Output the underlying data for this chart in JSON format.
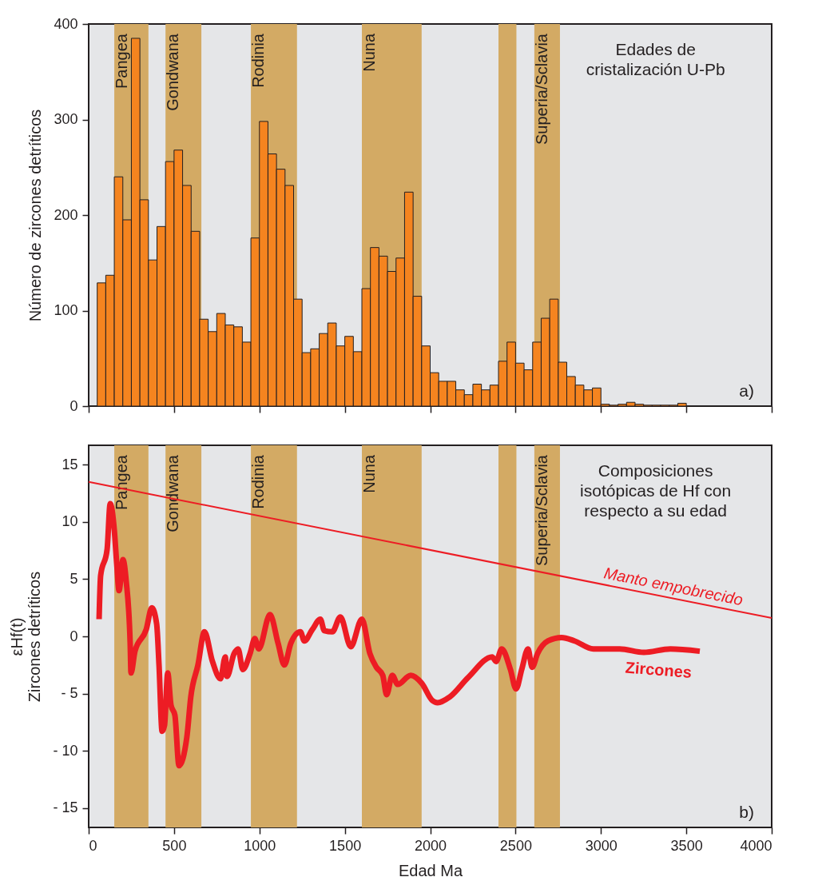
{
  "chart_data": [
    {
      "type": "histogram",
      "ylabel": "Número de zircones detríticos",
      "color": "#f5841f",
      "bins": [
        50,
        100,
        150,
        200,
        250,
        300,
        350,
        400,
        450,
        500,
        550,
        600,
        650,
        700,
        750,
        800,
        850,
        900,
        950,
        1000,
        1050,
        1100,
        1150,
        1200,
        1250,
        1300,
        1350,
        1400,
        1450,
        1500,
        1550,
        1600,
        1650,
        1700,
        1750,
        1800,
        1850,
        1900,
        1950,
        2000,
        2050,
        2100,
        2150,
        2200,
        2250,
        2300,
        2350,
        2400,
        2450,
        2500,
        2550,
        2600,
        2650,
        2700,
        2750,
        2800,
        2850,
        2900,
        2950,
        3000,
        3050,
        3100,
        3150,
        3200,
        3250,
        3300,
        3350,
        3400,
        3450,
        3500
      ],
      "values": [
        129,
        137,
        240,
        195,
        385,
        216,
        153,
        188,
        256,
        268,
        231,
        183,
        91,
        78,
        97,
        85,
        83,
        67,
        176,
        298,
        264,
        248,
        231,
        112,
        56,
        60,
        76,
        87,
        63,
        73,
        57,
        123,
        166,
        157,
        141,
        155,
        224,
        115,
        63,
        35,
        26,
        26,
        17,
        12,
        23,
        17,
        22,
        47,
        67,
        45,
        38,
        67,
        92,
        112,
        46,
        31,
        22,
        17,
        19,
        2,
        1,
        2,
        4,
        2,
        1,
        1,
        1,
        1,
        3
      ],
      "xlim": [
        0,
        4000
      ],
      "xticks": [
        0,
        500,
        1000,
        1500,
        2000,
        2500,
        3000,
        3500,
        4000
      ],
      "ylim": [
        0,
        400
      ],
      "yticks": [
        0,
        100,
        200,
        300,
        400
      ],
      "tick_labels": "y",
      "grid": false,
      "bands": [
        {
          "axis": "x",
          "from": 150,
          "to": 350,
          "label": "Pangea",
          "color": "#d3aa64"
        },
        {
          "axis": "x",
          "from": 450,
          "to": 660,
          "label": "Gondwana",
          "color": "#d3aa64"
        },
        {
          "axis": "x",
          "from": 950,
          "to": 1220,
          "label": "Rodinia",
          "color": "#d3aa64"
        },
        {
          "axis": "x",
          "from": 1600,
          "to": 1950,
          "label": "Nuna",
          "color": "#d3aa64"
        },
        {
          "axis": "x",
          "from": 2400,
          "to": 2505,
          "label": null,
          "color": "#d3aa64"
        },
        {
          "axis": "x",
          "from": 2610,
          "to": 2760,
          "label": "Superia/Sclavia",
          "color": "#d3aa64"
        }
      ],
      "annotations": [
        "Edades de\ncristalización U-Pb",
        "a)"
      ]
    },
    {
      "type": "line",
      "xlabel": "Edad Ma",
      "ylabel": "εHf(t)\nZircones detríticos",
      "xlim": [
        0,
        4000
      ],
      "xticks": [
        0,
        500,
        1000,
        1500,
        2000,
        2500,
        3000,
        3500,
        4000
      ],
      "ylim": [
        -16.7,
        16.7
      ],
      "yticks": [
        {
          "value": -15,
          "label": "- 15"
        },
        {
          "value": -10,
          "label": "- 10"
        },
        {
          "value": -5,
          "label": "- 5"
        },
        0,
        5,
        10,
        15
      ],
      "grid": false,
      "line_style": "solid",
      "marker": "none",
      "series": [
        {
          "name": "Zircones",
          "color": "#ed1c24",
          "x": [
            61,
            70,
            108,
            126,
            150,
            164,
            178,
            201,
            220,
            243,
            248,
            271,
            337,
            370,
            398,
            412,
            430,
            444,
            463,
            482,
            505,
            529,
            575,
            598,
            640,
            678,
            725,
            772,
            800,
            810,
            852,
            875,
            903,
            945,
            973,
            996,
            1062,
            1109,
            1146,
            1184,
            1240,
            1263,
            1310,
            1357,
            1380,
            1427,
            1474,
            1535,
            1600,
            1647,
            1685,
            1722,
            1745,
            1778,
            1810,
            1886,
            1951,
            2012,
            2044,
            2114,
            2222,
            2363,
            2386,
            2419,
            2470,
            2503,
            2536,
            2573,
            2597,
            2629,
            2690,
            2770,
            2845,
            2956,
            3110,
            3251,
            3406,
            3579
          ],
          "values": [
            1.5,
            5.3,
            7.6,
            11.6,
            9.3,
            6.4,
            4.0,
            6.7,
            4.8,
            -0.6,
            -3.2,
            -1.3,
            0.6,
            2.5,
            1.1,
            -2.5,
            -8.3,
            -7.8,
            -3.2,
            -6.0,
            -6.9,
            -11.3,
            -8.8,
            -5.3,
            -2.5,
            0.4,
            -2.2,
            -3.7,
            -1.8,
            -3.5,
            -1.5,
            -1.1,
            -2.9,
            -1.5,
            -0.2,
            -1.1,
            1.9,
            -0.6,
            -2.5,
            -0.6,
            0.4,
            -0.4,
            0.6,
            1.5,
            0.5,
            0.4,
            1.7,
            -0.9,
            1.5,
            -1.5,
            -2.7,
            -3.4,
            -5.1,
            -3.4,
            -4.2,
            -3.4,
            -4.1,
            -5.6,
            -5.8,
            -5.3,
            -3.6,
            -1.8,
            -2.2,
            -1.1,
            -2.9,
            -4.6,
            -2.9,
            -1.1,
            -2.7,
            -1.5,
            -0.4,
            -0.1,
            -0.4,
            -1.1,
            -1.1,
            -1.4,
            -1.1,
            -1.3
          ]
        },
        {
          "name": "Manto empobrecido",
          "color": "#ed1c24",
          "x": [
            0,
            4000
          ],
          "values": [
            13.5,
            1.6
          ]
        }
      ],
      "bands": [
        {
          "axis": "x",
          "from": 150,
          "to": 350,
          "label": "Pangea",
          "color": "#d3aa64"
        },
        {
          "axis": "x",
          "from": 450,
          "to": 660,
          "label": "Gondwana",
          "color": "#d3aa64"
        },
        {
          "axis": "x",
          "from": 950,
          "to": 1220,
          "label": "Rodinia",
          "color": "#d3aa64"
        },
        {
          "axis": "x",
          "from": 1600,
          "to": 1950,
          "label": "Nuna",
          "color": "#d3aa64"
        },
        {
          "axis": "x",
          "from": 2400,
          "to": 2505,
          "label": null,
          "color": "#d3aa64"
        },
        {
          "axis": "x",
          "from": 2610,
          "to": 2760,
          "label": "Superia/Sclavia",
          "color": "#d3aa64"
        }
      ],
      "annotations": [
        "Composiciones\nisotópicas de Hf con\nrespecto a su edad",
        "b)"
      ]
    }
  ]
}
